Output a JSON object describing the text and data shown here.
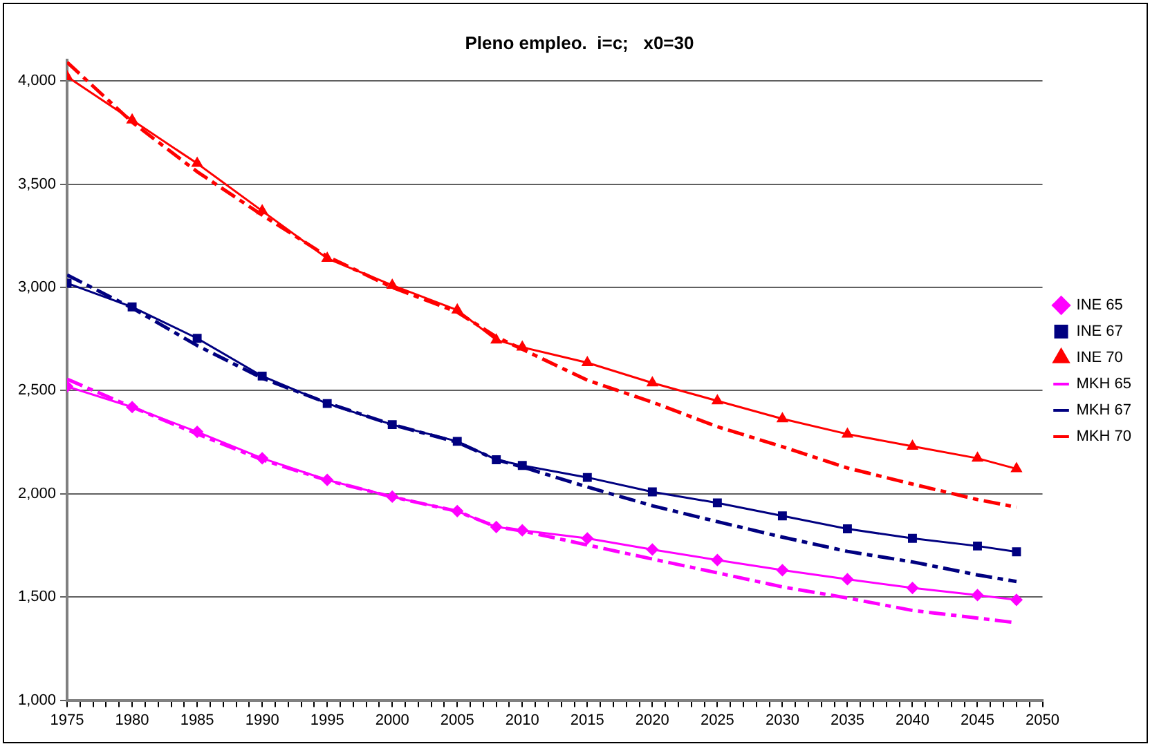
{
  "chart_data": {
    "type": "line",
    "title": "Pleno empleo.  i=c;   x0=30",
    "xlim": [
      1975,
      2050
    ],
    "xticks": [
      1975,
      {
        "value": 1976,
        "label": null
      },
      {
        "value": 1977,
        "label": null
      },
      {
        "value": 1978,
        "label": null
      },
      {
        "value": 1979,
        "label": null
      },
      1980,
      {
        "value": 1981,
        "label": null
      },
      {
        "value": 1982,
        "label": null
      },
      {
        "value": 1983,
        "label": null
      },
      {
        "value": 1984,
        "label": null
      },
      1985,
      {
        "value": 1986,
        "label": null
      },
      {
        "value": 1987,
        "label": null
      },
      {
        "value": 1988,
        "label": null
      },
      {
        "value": 1989,
        "label": null
      },
      1990,
      {
        "value": 1991,
        "label": null
      },
      {
        "value": 1992,
        "label": null
      },
      {
        "value": 1993,
        "label": null
      },
      {
        "value": 1994,
        "label": null
      },
      1995,
      {
        "value": 1996,
        "label": null
      },
      {
        "value": 1997,
        "label": null
      },
      {
        "value": 1998,
        "label": null
      },
      {
        "value": 1999,
        "label": null
      },
      2000,
      {
        "value": 2001,
        "label": null
      },
      {
        "value": 2002,
        "label": null
      },
      {
        "value": 2003,
        "label": null
      },
      {
        "value": 2004,
        "label": null
      },
      2005,
      {
        "value": 2006,
        "label": null
      },
      {
        "value": 2007,
        "label": null
      },
      {
        "value": 2008,
        "label": null
      },
      {
        "value": 2009,
        "label": null
      },
      2010,
      {
        "value": 2011,
        "label": null
      },
      {
        "value": 2012,
        "label": null
      },
      {
        "value": 2013,
        "label": null
      },
      {
        "value": 2014,
        "label": null
      },
      2015,
      {
        "value": 2016,
        "label": null
      },
      {
        "value": 2017,
        "label": null
      },
      {
        "value": 2018,
        "label": null
      },
      {
        "value": 2019,
        "label": null
      },
      2020,
      {
        "value": 2021,
        "label": null
      },
      {
        "value": 2022,
        "label": null
      },
      {
        "value": 2023,
        "label": null
      },
      {
        "value": 2024,
        "label": null
      },
      2025,
      {
        "value": 2026,
        "label": null
      },
      {
        "value": 2027,
        "label": null
      },
      {
        "value": 2028,
        "label": null
      },
      {
        "value": 2029,
        "label": null
      },
      2030,
      {
        "value": 2031,
        "label": null
      },
      {
        "value": 2032,
        "label": null
      },
      {
        "value": 2033,
        "label": null
      },
      {
        "value": 2034,
        "label": null
      },
      2035,
      {
        "value": 2036,
        "label": null
      },
      {
        "value": 2037,
        "label": null
      },
      {
        "value": 2038,
        "label": null
      },
      {
        "value": 2039,
        "label": null
      },
      2040,
      {
        "value": 2041,
        "label": null
      },
      {
        "value": 2042,
        "label": null
      },
      {
        "value": 2043,
        "label": null
      },
      {
        "value": 2044,
        "label": null
      },
      2045,
      {
        "value": 2046,
        "label": null
      },
      {
        "value": 2047,
        "label": null
      },
      {
        "value": 2048,
        "label": null
      },
      {
        "value": 2049,
        "label": null
      },
      2050
    ],
    "ylim": [
      1000,
      4100
    ],
    "yticks": [
      {
        "value": 1000,
        "label": "1,000"
      },
      {
        "value": 1500,
        "label": "1,500"
      },
      {
        "value": 2000,
        "label": "2,000"
      },
      {
        "value": 2500,
        "label": "2,500"
      },
      {
        "value": 3000,
        "label": "3,000"
      },
      {
        "value": 3500,
        "label": "3,500"
      },
      {
        "value": 4000,
        "label": "4,000"
      }
    ],
    "grid": "y",
    "legend": "right",
    "x": [
      1975,
      1980,
      1985,
      1990,
      1995,
      2000,
      2005,
      2008,
      2010,
      2015,
      2020,
      2025,
      2030,
      2035,
      2040,
      2045,
      2048
    ],
    "series": [
      {
        "name": "INE 65",
        "color": "#ff00ff",
        "marker": "diamond",
        "line_style": "solid",
        "values": [
          2520,
          2420,
          2300,
          2172,
          2067,
          1986,
          1916,
          1839,
          1823,
          1784,
          1730,
          1679,
          1630,
          1586,
          1544,
          1509,
          1486
        ]
      },
      {
        "name": "INE 67",
        "color": "#000080",
        "marker": "square",
        "line_style": "solid",
        "values": [
          3020,
          2905,
          2753,
          2570,
          2437,
          2335,
          2254,
          2165,
          2137,
          2079,
          2009,
          1956,
          1893,
          1830,
          1784,
          1747,
          1719
        ]
      },
      {
        "name": "INE 70",
        "color": "#ff0000",
        "marker": "triangle",
        "line_style": "solid",
        "values": [
          4020,
          3810,
          3600,
          3370,
          3140,
          3010,
          2890,
          2745,
          2710,
          2635,
          2537,
          2450,
          2363,
          2289,
          2230,
          2172,
          2121
        ]
      },
      {
        "name": "MKH 65",
        "color": "#ff00ff",
        "marker": "none",
        "line_style": "dashed",
        "values": [
          2555,
          2420,
          2290,
          2165,
          2065,
          1985,
          1915,
          1840,
          1820,
          1752,
          1684,
          1617,
          1549,
          1495,
          1435,
          1398,
          1375
        ]
      },
      {
        "name": "MKH 67",
        "color": "#000080",
        "marker": "none",
        "line_style": "dashed",
        "values": [
          3060,
          2900,
          2718,
          2560,
          2440,
          2335,
          2250,
          2165,
          2130,
          2033,
          1942,
          1865,
          1790,
          1721,
          1670,
          1607,
          1575
        ]
      },
      {
        "name": "MKH 70",
        "color": "#ff0000",
        "marker": "none",
        "line_style": "dashed",
        "values": [
          4090,
          3800,
          3560,
          3350,
          3150,
          3000,
          2880,
          2760,
          2700,
          2550,
          2444,
          2325,
          2228,
          2125,
          2047,
          1972,
          1935
        ]
      }
    ]
  }
}
